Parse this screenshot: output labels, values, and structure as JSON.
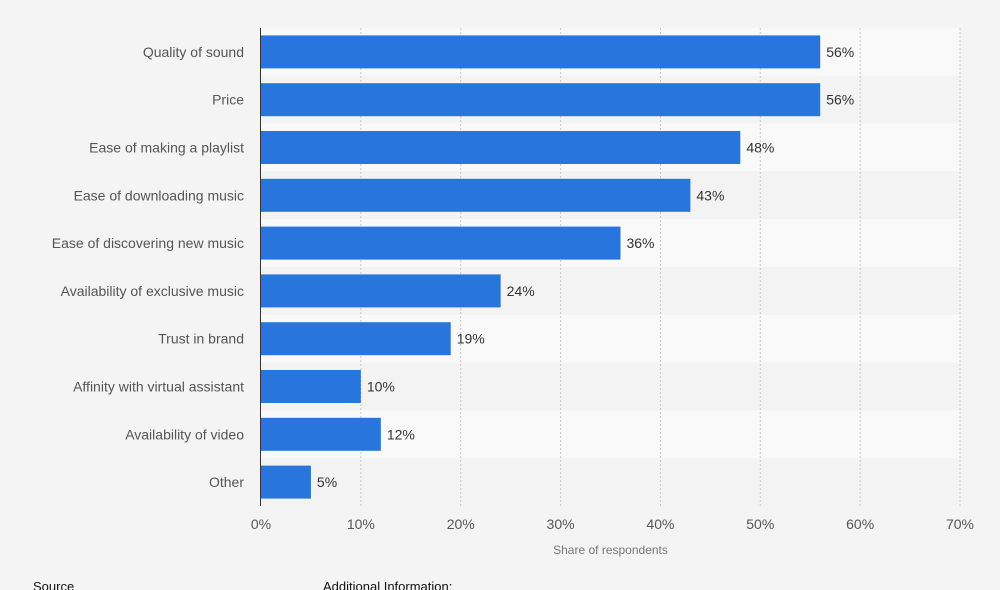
{
  "chart_data": {
    "type": "bar",
    "orientation": "horizontal",
    "categories": [
      "Quality of sound",
      "Price",
      "Ease of making a playlist",
      "Ease of downloading music",
      "Ease of discovering new music",
      "Availability of exclusive music",
      "Trust in brand",
      "Affinity with virtual assistant",
      "Availability of video",
      "Other"
    ],
    "values": [
      56,
      56,
      48,
      43,
      36,
      24,
      19,
      10,
      12,
      5
    ],
    "value_labels": [
      "56%",
      "56%",
      "48%",
      "43%",
      "36%",
      "24%",
      "19%",
      "10%",
      "12%",
      "5%"
    ],
    "xlabel": "Share of respondents",
    "ylabel": "",
    "xlim": [
      0,
      70
    ],
    "x_ticks": [
      0,
      10,
      20,
      30,
      40,
      50,
      60,
      70
    ],
    "x_tick_labels": [
      "0%",
      "10%",
      "20%",
      "30%",
      "40%",
      "50%",
      "60%",
      "70%"
    ],
    "grid": true,
    "bar_color": "#2876dd",
    "row_band_colors": [
      "#f9f9f9",
      "#f3f3f3"
    ]
  },
  "footer": {
    "source_label": "Source",
    "additional_info_label": "Additional Information:"
  }
}
